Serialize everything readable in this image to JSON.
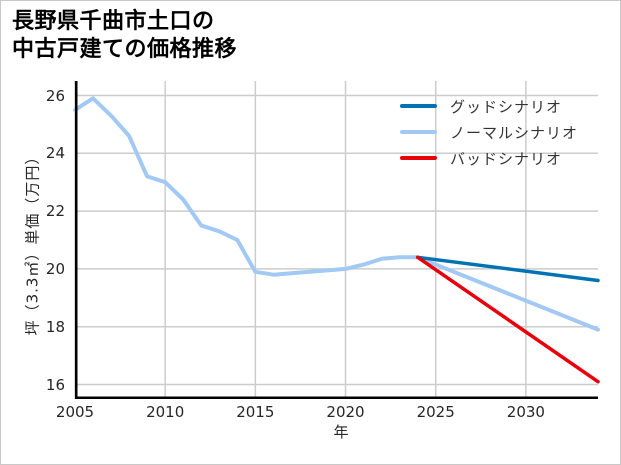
{
  "page": {
    "background": "#ffffff",
    "border_color": "#c9c9c9"
  },
  "chart_data": {
    "type": "line",
    "title": "長野県千曲市土口の\n中古戸建ての価格推移",
    "xlabel": "年",
    "ylabel": "坪（3.3㎡）単価（万円）",
    "xlim": [
      2005,
      2034
    ],
    "ylim": [
      15.5,
      26.5
    ],
    "xticks": [
      2005,
      2010,
      2015,
      2020,
      2025,
      2030
    ],
    "yticks": [
      16,
      18,
      20,
      22,
      24,
      26
    ],
    "grid": true,
    "grid_color": "#cccccc",
    "axis_color": "#000000",
    "tick_label_color": "#262626",
    "legend_position": "upper right",
    "legend_frame": false,
    "series": [
      {
        "name": "グッドシナリオ",
        "color": "#0173b2",
        "line_width": 3.5,
        "x": [
          2024,
          2034
        ],
        "y": [
          20.4,
          19.6
        ]
      },
      {
        "name": "ノーマルシナリオ",
        "color": "#a1c9f4",
        "line_width": 4,
        "x": [
          2005,
          2006,
          2007,
          2008,
          2009,
          2010,
          2011,
          2012,
          2013,
          2014,
          2015,
          2016,
          2017,
          2018,
          2019,
          2020,
          2021,
          2022,
          2023,
          2024,
          2034
        ],
        "y": [
          25.5,
          25.9,
          25.3,
          24.6,
          23.2,
          23.0,
          22.4,
          21.5,
          21.3,
          21.0,
          19.9,
          19.8,
          19.85,
          19.9,
          19.95,
          20.0,
          20.15,
          20.35,
          20.4,
          20.4,
          17.9
        ]
      },
      {
        "name": "バッドシナリオ",
        "color": "#e8000b",
        "line_width": 3.5,
        "x": [
          2024,
          2034
        ],
        "y": [
          20.4,
          16.1
        ]
      }
    ]
  }
}
